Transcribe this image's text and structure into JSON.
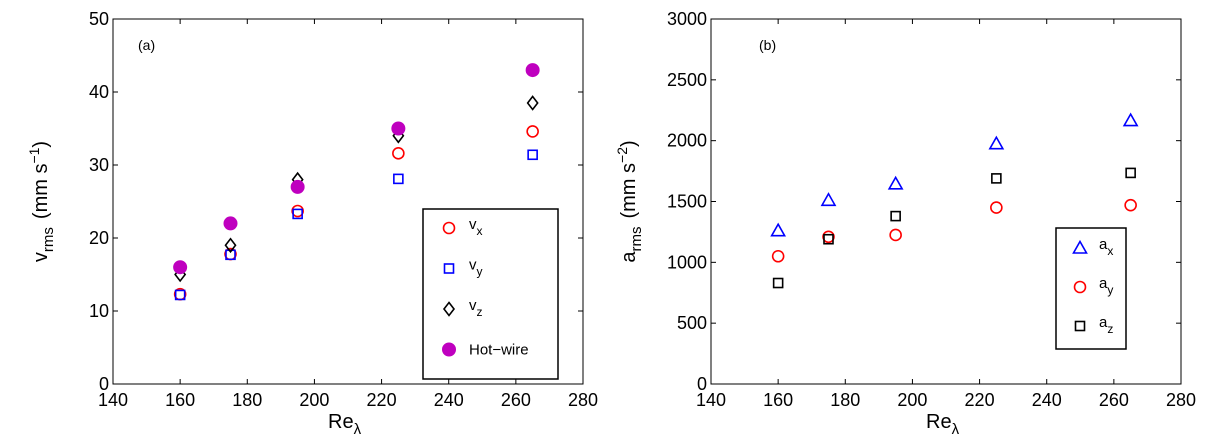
{
  "chart_data": [
    {
      "type": "scatter",
      "panel_label": "(a)",
      "xlabel": "Re",
      "xlabel_sub": "λ",
      "ylabel": "v",
      "ylabel_sub": "rms",
      "ylabel_unit": "(mm s",
      "ylabel_sup": "−1",
      "ylabel_close": ")",
      "xlim": [
        140,
        280
      ],
      "ylim": [
        0,
        50
      ],
      "xticks": [
        "140",
        "160",
        "180",
        "200",
        "220",
        "240",
        "260",
        "280"
      ],
      "yticks": [
        "0",
        "10",
        "20",
        "30",
        "40",
        "50"
      ],
      "legend_position": "lower-right",
      "series": [
        {
          "name": "v",
          "name_sub": "x",
          "marker": "circle-open",
          "color": "#ff0000",
          "x": [
            160,
            175,
            195,
            225,
            265
          ],
          "y": [
            12.3,
            17.8,
            23.7,
            31.6,
            34.6
          ]
        },
        {
          "name": "v",
          "name_sub": "y",
          "marker": "square-open",
          "color": "#0000ff",
          "x": [
            160,
            175,
            195,
            225,
            265
          ],
          "y": [
            12.2,
            17.7,
            23.3,
            28.1,
            31.4
          ]
        },
        {
          "name": "v",
          "name_sub": "z",
          "marker": "diamond-open",
          "color": "#000000",
          "x": [
            160,
            175,
            195,
            225,
            265
          ],
          "y": [
            15.0,
            19.0,
            28.0,
            34.0,
            38.5
          ]
        },
        {
          "name": "Hot−wire",
          "name_sub": "",
          "marker": "circle-filled",
          "color": "#bf00bf",
          "x": [
            160,
            175,
            195,
            225,
            265
          ],
          "y": [
            16.0,
            22.0,
            27.0,
            35.0,
            43.0
          ]
        }
      ]
    },
    {
      "type": "scatter",
      "panel_label": "(b)",
      "xlabel": "Re",
      "xlabel_sub": "λ",
      "ylabel": "a",
      "ylabel_sub": "rms",
      "ylabel_unit": "(mm s",
      "ylabel_sup": "−2",
      "ylabel_close": ")",
      "xlim": [
        140,
        280
      ],
      "ylim": [
        0,
        3000
      ],
      "xticks": [
        "140",
        "160",
        "180",
        "200",
        "220",
        "240",
        "260",
        "280"
      ],
      "yticks": [
        "0",
        "500",
        "1000",
        "1500",
        "2000",
        "2500",
        "3000"
      ],
      "legend_position": "lower-right",
      "series": [
        {
          "name": "a",
          "name_sub": "x",
          "marker": "triangle-open",
          "color": "#0000ff",
          "x": [
            160,
            175,
            195,
            225,
            265
          ],
          "y": [
            1260,
            1510,
            1645,
            1975,
            2165
          ]
        },
        {
          "name": "a",
          "name_sub": "y",
          "marker": "circle-open",
          "color": "#ff0000",
          "x": [
            160,
            175,
            195,
            225,
            265
          ],
          "y": [
            1050,
            1210,
            1225,
            1450,
            1470
          ]
        },
        {
          "name": "a",
          "name_sub": "z",
          "marker": "square-open",
          "color": "#000000",
          "x": [
            160,
            175,
            195,
            225,
            265
          ],
          "y": [
            830,
            1190,
            1380,
            1690,
            1735
          ]
        }
      ]
    }
  ]
}
